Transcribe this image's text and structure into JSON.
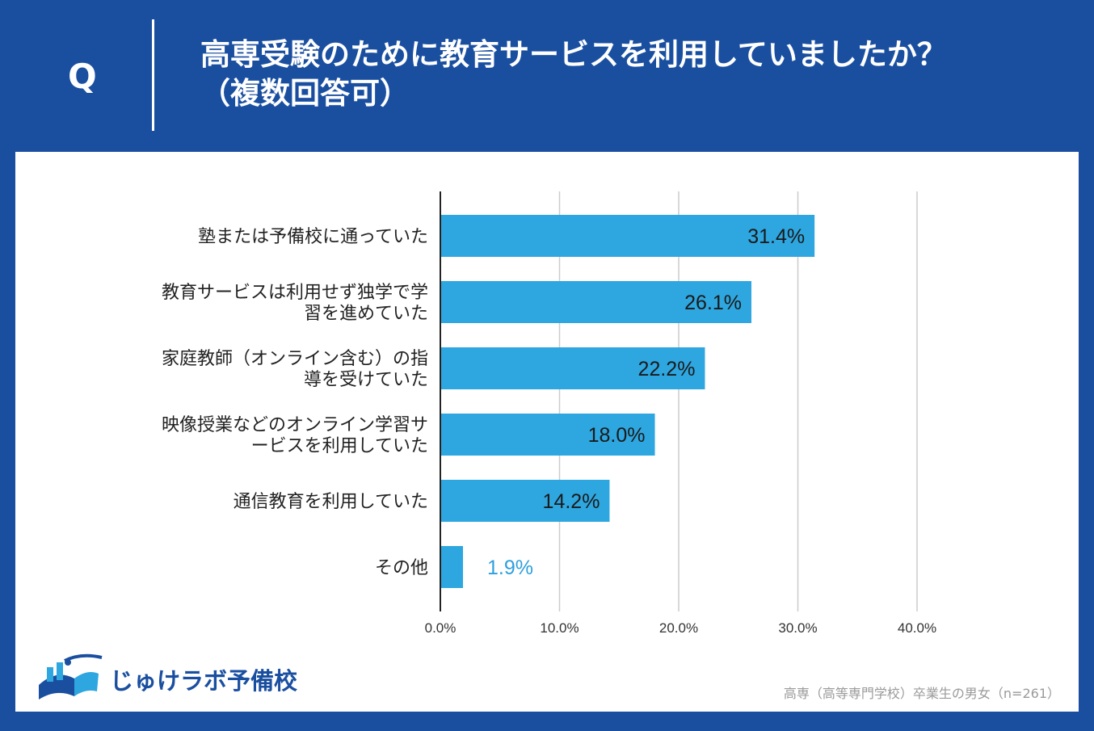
{
  "header": {
    "q_label": "Q",
    "title_line1": "高専受験のために教育サービスを利用していましたか？",
    "title_line2": "（複数回答可）"
  },
  "chart_data": {
    "type": "bar",
    "orientation": "horizontal",
    "categories": [
      [
        "塾または予備校に通っていた"
      ],
      [
        "教育サービスは利用せず独学で学",
        "習を進めていた"
      ],
      [
        "家庭教師（オンライン含む）の指",
        "導を受けていた"
      ],
      [
        "映像授業などのオンライン学習サ",
        "ービスを利用していた"
      ],
      [
        "通信教育を利用していた"
      ],
      [
        "その他"
      ]
    ],
    "values": [
      31.4,
      26.1,
      22.2,
      18.0,
      14.2,
      1.9
    ],
    "value_labels": [
      "31.4%",
      "26.1%",
      "22.2%",
      "18.0%",
      "14.2%",
      "1.9%"
    ],
    "xlim": [
      0,
      40
    ],
    "ticks": [
      0,
      10,
      20,
      30,
      40
    ],
    "tick_labels": [
      "0.0%",
      "10.0%",
      "20.0%",
      "30.0%",
      "40.0%"
    ],
    "grid": true,
    "bar_color": "#2ea6df",
    "label_outside_color": "#2e9fde"
  },
  "colors": {
    "brand": "#1a4fa0",
    "panel": "#ffffff"
  },
  "logo": {
    "text": "じゅけラボ予備校",
    "icon": "open-book-icon"
  },
  "footnote": "高専（高等専門学校）卒業生の男女（n=261）"
}
